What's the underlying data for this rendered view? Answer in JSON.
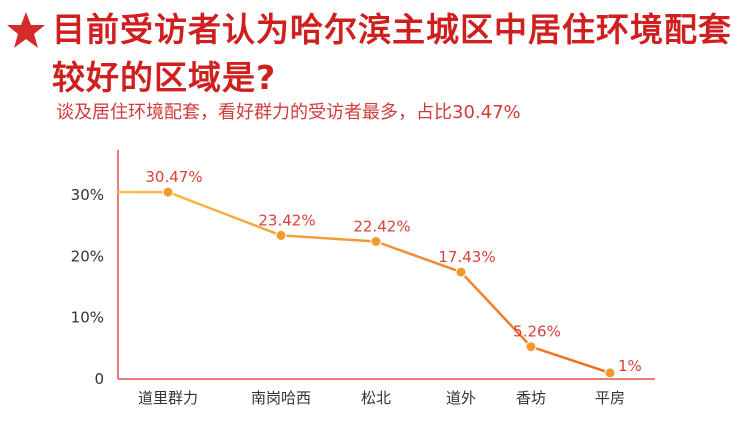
{
  "header": {
    "title": "目前受访者认为哈尔滨主城区中居住环境配套较好的区域是?",
    "subtitle": "谈及居住环境配套，看好群力的受访者最多，占比30.47%"
  },
  "colors": {
    "title": "#cf1f1f",
    "axis": "#e05050",
    "line_start": "#f6c24a",
    "line_end": "#ec6a26",
    "marker": "#f29a2e",
    "data_label": "#d9423b"
  },
  "chart_data": {
    "type": "line",
    "title": "",
    "xlabel": "",
    "ylabel": "",
    "categories": [
      "道里群力",
      "南岗哈西",
      "松北",
      "道外",
      "香坊",
      "平房"
    ],
    "series": [
      {
        "values": [
          30.47,
          23.42,
          22.42,
          17.43,
          5.26,
          1
        ],
        "labels": [
          "30.47%",
          "23.42%",
          "22.42%",
          "17.43%",
          "5.26%",
          "1%"
        ]
      }
    ],
    "y_ticks": [
      {
        "value": 0,
        "label": "0"
      },
      {
        "value": 10,
        "label": "10%"
      },
      {
        "value": 20,
        "label": "20%"
      },
      {
        "value": 30,
        "label": "30%"
      }
    ],
    "ylim": [
      0,
      35
    ],
    "grid": false,
    "legend": "none"
  }
}
